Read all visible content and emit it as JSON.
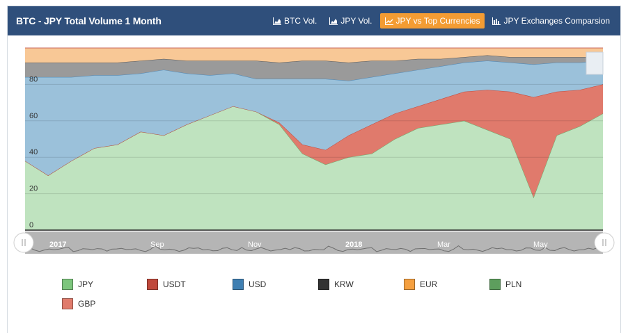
{
  "header": {
    "title": "BTC - JPY Total Volume 1 Month",
    "tabs": [
      {
        "label": "BTC Vol.",
        "icon": "area-chart-icon",
        "active": false
      },
      {
        "label": "JPY Vol.",
        "icon": "area-chart-icon",
        "active": false
      },
      {
        "label": "JPY vs Top Currencies",
        "icon": "line-chart-icon",
        "active": true
      },
      {
        "label": "JPY Exchanges Comparsion",
        "icon": "bar-chart-icon",
        "active": false
      }
    ]
  },
  "chart_data": {
    "type": "area",
    "stacking": "percent",
    "y_ticks": [
      "0",
      "20",
      "40",
      "60",
      "80"
    ],
    "ylim": [
      0,
      100
    ],
    "navigator_labels": [
      "2017",
      "Sep",
      "Nov",
      "2018",
      "Mar",
      "May"
    ],
    "x": [
      "2017-07-06",
      "2017-07-20",
      "2017-08-03",
      "2017-08-17",
      "2017-08-31",
      "2017-09-14",
      "2017-09-28",
      "2017-10-12",
      "2017-10-26",
      "2017-11-09",
      "2017-11-23",
      "2017-12-07",
      "2017-12-21",
      "2018-01-04",
      "2018-01-18",
      "2018-02-01",
      "2018-02-15",
      "2018-03-01",
      "2018-03-15",
      "2018-03-29",
      "2018-04-12",
      "2018-04-26",
      "2018-05-03",
      "2018-05-10",
      "2018-05-24",
      "2018-06-07"
    ],
    "series": [
      {
        "name": "JPY",
        "color": "#bfe3bf",
        "stroke": "#6cab6c",
        "values": [
          38,
          30,
          38,
          45,
          47,
          54,
          52,
          58,
          63,
          68,
          65,
          58,
          42,
          36,
          40,
          42,
          50,
          56,
          58,
          60,
          55,
          50,
          18,
          52,
          57,
          64
        ]
      },
      {
        "name": "USDT",
        "color": "#e07a6c",
        "stroke": "#c0493c",
        "values": [
          0,
          0,
          0,
          0,
          0,
          0,
          0,
          0,
          0,
          0,
          0,
          1,
          5,
          8,
          12,
          16,
          14,
          12,
          14,
          16,
          22,
          26,
          55,
          24,
          20,
          16
        ]
      },
      {
        "name": "USD",
        "color": "#9bc1da",
        "stroke": "#4a87b8",
        "values": [
          46,
          54,
          46,
          40,
          38,
          32,
          36,
          28,
          22,
          18,
          18,
          24,
          36,
          39,
          30,
          26,
          22,
          20,
          18,
          16,
          16,
          16,
          18,
          16,
          15,
          13
        ]
      },
      {
        "name": "KRW",
        "color": "#9a9a9a",
        "stroke": "#555555",
        "values": [
          8,
          8,
          8,
          7,
          7,
          7,
          6,
          7,
          8,
          7,
          10,
          9,
          10,
          10,
          10,
          9,
          7,
          6,
          4,
          3,
          3,
          3,
          4,
          3,
          3,
          2
        ]
      },
      {
        "name": "EUR",
        "color": "#f8c896",
        "stroke": "#e8a060",
        "values": [
          8,
          8,
          8,
          8,
          8,
          7,
          6,
          7,
          7,
          7,
          7,
          8,
          7,
          7,
          8,
          7,
          7,
          6,
          6,
          5,
          4,
          5,
          5,
          5,
          5,
          5
        ]
      },
      {
        "name": "PLN",
        "color": "#7ab87a",
        "stroke": "#4d8f4d",
        "values": [
          0,
          0,
          0,
          0,
          0,
          0,
          0,
          0,
          0,
          0,
          0,
          0,
          0,
          0,
          0,
          0,
          0,
          0,
          0,
          0,
          0,
          0,
          0,
          0,
          0,
          0
        ]
      },
      {
        "name": "GBP",
        "color": "#e59a8d",
        "stroke": "#c9685b",
        "values": [
          0,
          0,
          0,
          0,
          0,
          0,
          0,
          0,
          0,
          0,
          0,
          0,
          0,
          0,
          0,
          0,
          0,
          0,
          0,
          0,
          0,
          0,
          0,
          0,
          0,
          0
        ]
      }
    ],
    "legend": [
      {
        "label": "JPY",
        "color": "#7dc67d"
      },
      {
        "label": "USDT",
        "color": "#c0493c"
      },
      {
        "label": "USD",
        "color": "#3f7fb2"
      },
      {
        "label": "KRW",
        "color": "#333333"
      },
      {
        "label": "EUR",
        "color": "#f5a040"
      },
      {
        "label": "PLN",
        "color": "#5d9e5d"
      },
      {
        "label": "GBP",
        "color": "#e07b6c"
      }
    ]
  }
}
